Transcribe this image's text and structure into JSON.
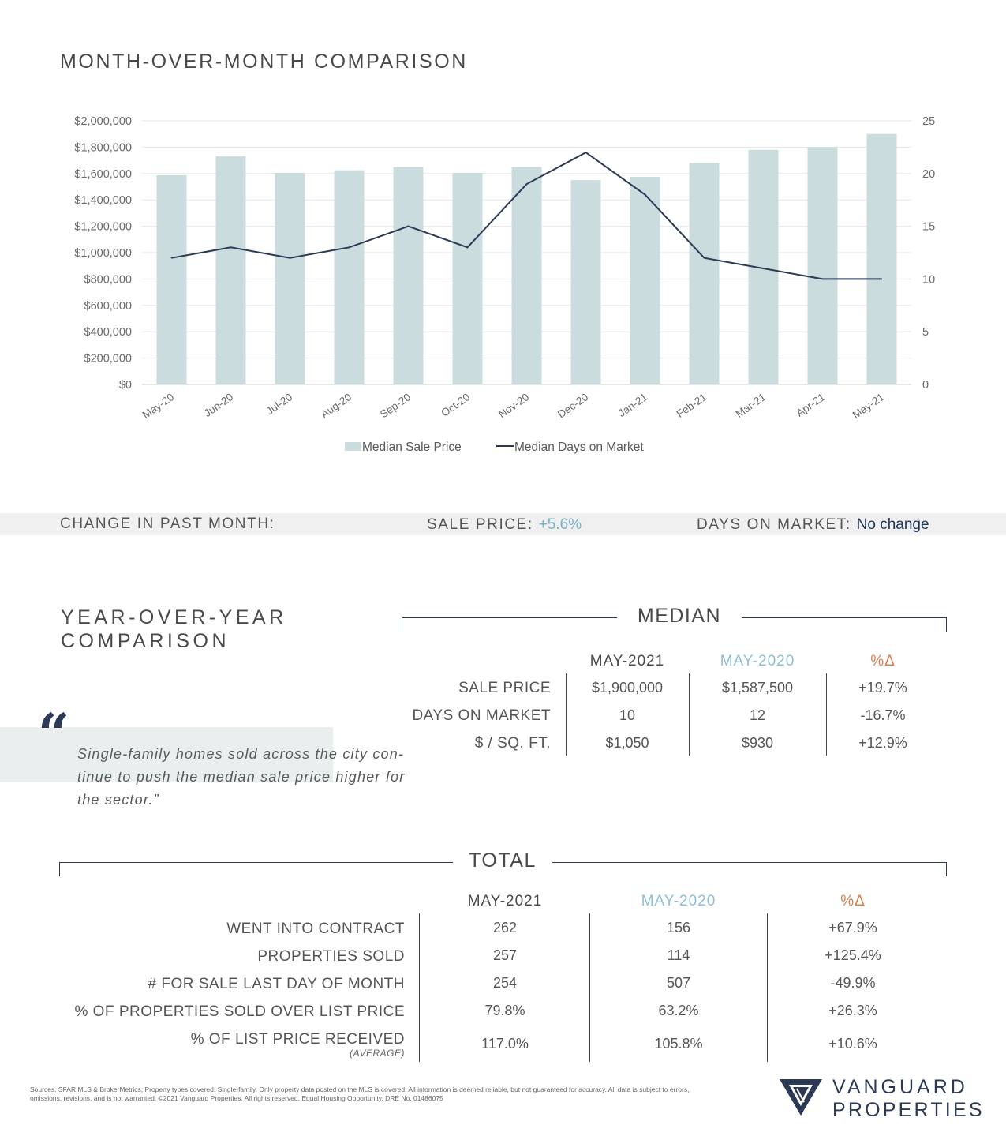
{
  "title": "MONTH-OVER-MONTH COMPARISON",
  "colors": {
    "bar": "#cbdcde",
    "line": "#2c3a55",
    "grid": "#e6e6e6",
    "accent_2020": "#8fbfd2",
    "accent_pct": "#d9824f",
    "sale_change": "#7bafc4",
    "dom_change": "#1e3358"
  },
  "chart_data": {
    "type": "bar",
    "categories": [
      "May-20",
      "Jun-20",
      "Jul-20",
      "Aug-20",
      "Sep-20",
      "Oct-20",
      "Nov-20",
      "Dec-20",
      "Jan-21",
      "Feb-21",
      "Mar-21",
      "Apr-21",
      "May-21"
    ],
    "series": [
      {
        "name": "Median Sale Price",
        "type": "bar",
        "axis": "left",
        "values": [
          1587500,
          1730000,
          1605000,
          1625000,
          1650000,
          1605000,
          1650000,
          1550000,
          1575000,
          1680000,
          1780000,
          1800000,
          1900000
        ]
      },
      {
        "name": "Median Days on Market",
        "type": "line",
        "axis": "right",
        "values": [
          12,
          13,
          12,
          13,
          15,
          13,
          19,
          22,
          18,
          12,
          11,
          10,
          10
        ]
      }
    ],
    "y_left": {
      "lim": [
        0,
        2000000
      ],
      "ticks": [
        0,
        200000,
        400000,
        600000,
        800000,
        1000000,
        1200000,
        1400000,
        1600000,
        1800000,
        2000000
      ],
      "tick_labels": [
        "$0",
        "$200,000",
        "$400,000",
        "$600,000",
        "$800,000",
        "$1,000,000",
        "$1,200,000",
        "$1,400,000",
        "$1,600,000",
        "$1,800,000",
        "$2,000,000"
      ]
    },
    "y_right": {
      "lim": [
        0,
        25
      ],
      "ticks": [
        0,
        5,
        10,
        15,
        20,
        25
      ],
      "tick_labels": [
        "0",
        "5",
        "10",
        "15",
        "20",
        "25"
      ]
    },
    "grid": true,
    "legend": "bottom-center"
  },
  "change": {
    "label": "CHANGE IN PAST MONTH:",
    "sale_label": "SALE PRICE:",
    "sale_value": "+5.6%",
    "dom_label": "DAYS ON MARKET:",
    "dom_value": "No change"
  },
  "yoy": {
    "title": "YEAR-OVER-YEAR COMPARISON",
    "quote_mark": "“",
    "quote": "Single-family homes sold across the city con-tinue to push the median sale price higher for the sector.”"
  },
  "median": {
    "title": "MEDIAN",
    "headers": [
      "MAY-2021",
      "MAY-2020",
      "%Δ"
    ],
    "rows": [
      {
        "label": "SALE PRICE",
        "v2021": "$1,900,000",
        "v2020": "$1,587,500",
        "pct": "+19.7%"
      },
      {
        "label": "DAYS ON MARKET",
        "v2021": "10",
        "v2020": "12",
        "pct": "-16.7%"
      },
      {
        "label": "$ / SQ. FT.",
        "v2021": "$1,050",
        "v2020": "$930",
        "pct": "+12.9%"
      }
    ]
  },
  "total": {
    "title": "TOTAL",
    "headers": [
      "MAY-2021",
      "MAY-2020",
      "%Δ"
    ],
    "rows": [
      {
        "label": "WENT INTO CONTRACT",
        "v2021": "262",
        "v2020": "156",
        "pct": "+67.9%"
      },
      {
        "label": "PROPERTIES SOLD",
        "v2021": "257",
        "v2020": "114",
        "pct": "+125.4%"
      },
      {
        "label": "# FOR SALE LAST DAY OF MONTH",
        "v2021": "254",
        "v2020": "507",
        "pct": "-49.9%"
      },
      {
        "label": "% OF PROPERTIES SOLD OVER LIST PRICE",
        "v2021": "79.8%",
        "v2020": "63.2%",
        "pct": "+26.3%"
      },
      {
        "label": "% OF LIST PRICE RECEIVED",
        "sub": "(AVERAGE)",
        "v2021": "117.0%",
        "v2020": "105.8%",
        "pct": "+10.6%"
      }
    ]
  },
  "footer": {
    "sources": "Sources: SFAR MLS & BrokerMetrics; Property types covered: Single-family. Only property data posted on the MLS is covered. All information is deemed reliable, but not guaranteed for accuracy. All data is subject to errors, omissions, revisions, and is not warranted. ©2021 Vanguard Properties. All rights reserved. Equal Housing Opportunity. DRE No. 01486075",
    "logo_line1": "VANGUARD",
    "logo_line2": "PROPERTIES",
    "logo_icon": "vanguard-v-shield-icon"
  }
}
